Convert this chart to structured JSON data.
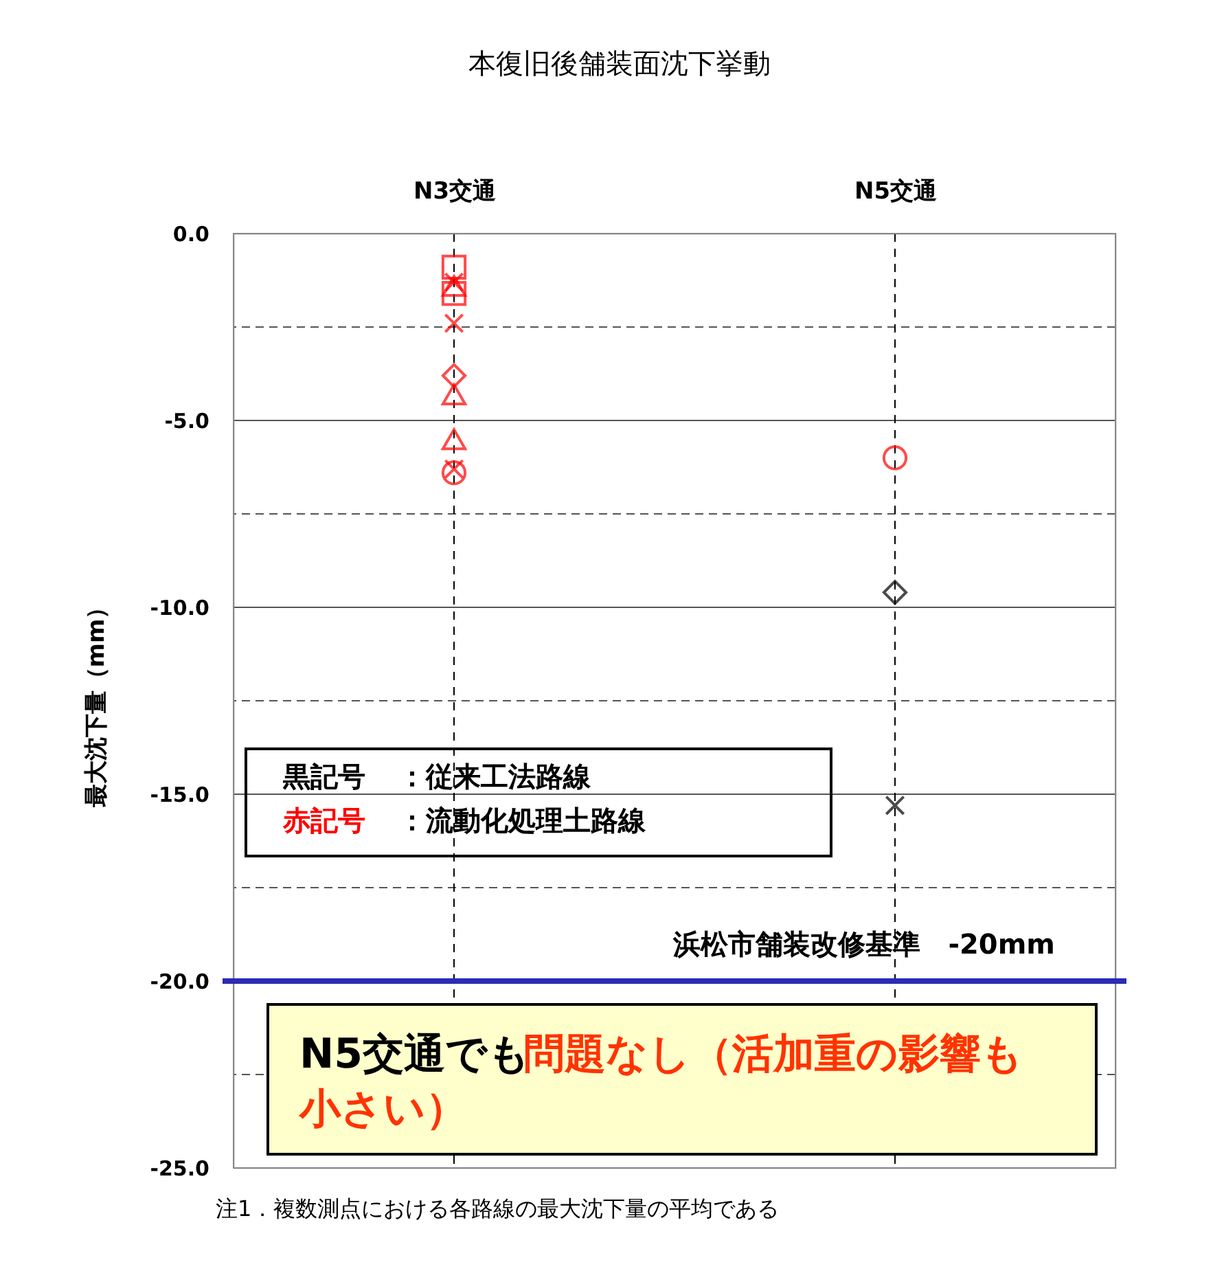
{
  "chart_data": {
    "type": "scatter",
    "title": "本復旧後舗装面沈下挙動",
    "ylabel": "最大沈下量（mm）",
    "categories": [
      "N3交通",
      "N5交通"
    ],
    "series": [
      {
        "color": "#ff0000",
        "marker": "square",
        "values": [
          -0.9,
          null
        ]
      },
      {
        "color": "#ff0000",
        "marker": "cross",
        "values": [
          -1.3,
          null
        ]
      },
      {
        "color": "#ff0000",
        "marker": "triangle",
        "values": [
          -1.4,
          null
        ]
      },
      {
        "color": "#ff0000",
        "marker": "square",
        "values": [
          -1.6,
          null
        ]
      },
      {
        "color": "#ff0000",
        "marker": "cross",
        "values": [
          -2.4,
          null
        ]
      },
      {
        "color": "#ff0000",
        "marker": "diamond",
        "values": [
          -3.8,
          null
        ]
      },
      {
        "color": "#ff0000",
        "marker": "triangle",
        "values": [
          -4.3,
          null
        ]
      },
      {
        "color": "#ff0000",
        "marker": "triangle",
        "values": [
          -5.5,
          null
        ]
      },
      {
        "color": "#ff0000",
        "marker": "cross",
        "values": [
          -6.3,
          null
        ]
      },
      {
        "color": "#ff0000",
        "marker": "circle",
        "values": [
          -6.4,
          null
        ]
      },
      {
        "color": "#ff0000",
        "marker": "circle",
        "values": [
          null,
          -6.0
        ]
      },
      {
        "color": "#000000",
        "marker": "diamond",
        "values": [
          null,
          -9.6
        ]
      },
      {
        "color": "#000000",
        "marker": "cross",
        "values": [
          null,
          -15.3
        ]
      }
    ],
    "ylim": [
      -25,
      0
    ],
    "yticks": [
      {
        "value": 0,
        "label": "0.0"
      },
      {
        "value": -2.5,
        "label": null
      },
      {
        "value": -5,
        "label": "-5.0"
      },
      {
        "value": -7.5,
        "label": null
      },
      {
        "value": -10,
        "label": "-10.0"
      },
      {
        "value": -12.5,
        "label": null
      },
      {
        "value": -15,
        "label": "-15.0"
      },
      {
        "value": -17.5,
        "label": null
      },
      {
        "value": -20,
        "label": "-20.0"
      },
      {
        "value": -22.5,
        "label": null
      },
      {
        "value": -25,
        "label": "-25.0"
      }
    ],
    "grid": true,
    "ref_lines": [
      {
        "axis": "y",
        "value": -20,
        "label": "浜松市舗装改修基準　-20mm",
        "color": "#2b2bb5"
      }
    ],
    "annotations": [
      "黒記号",
      "：従来工法路線",
      "赤記号",
      "：流動化処理土路線",
      "N5交通でも",
      "問題なし（活加重の影響も小さい）",
      "注1．複数測点における各路線の最大沈下量の平均である"
    ]
  }
}
